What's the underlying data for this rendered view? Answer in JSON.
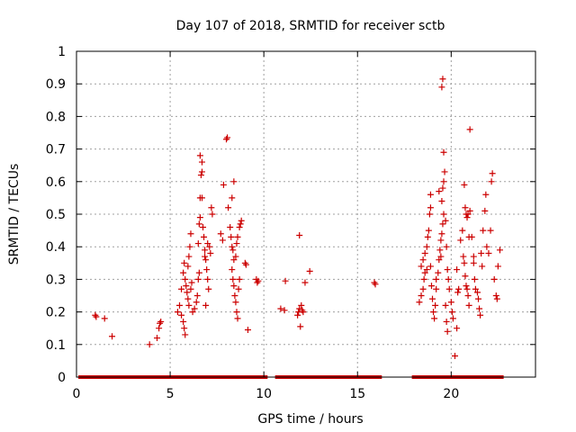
{
  "chart_data": {
    "type": "scatter",
    "title": "Day 107 of 2018, SRMTID for receiver sctb",
    "xlabel": "GPS time / hours",
    "ylabel": "SRMTID / TECUs",
    "xlim": [
      0,
      24.5
    ],
    "ylim": [
      0,
      1
    ],
    "xticks": [
      0,
      5,
      10,
      15,
      20
    ],
    "yticks": [
      0,
      0.1,
      0.2,
      0.3,
      0.4,
      0.5,
      0.6,
      0.7,
      0.8,
      0.9,
      1
    ],
    "xtick_labels": [
      "0",
      "5",
      "10",
      "15",
      "20"
    ],
    "ytick_labels": [
      "0",
      "0.1",
      "0.2",
      "0.3",
      "0.4",
      "0.5",
      "0.6",
      "0.7",
      "0.8",
      "0.9",
      "1"
    ],
    "grid": true,
    "marker": "+",
    "color": "#cc0000",
    "zero_bands": [
      [
        0.1,
        10.2
      ],
      [
        10.6,
        16.3
      ],
      [
        17.9,
        22.8
      ]
    ],
    "series": [
      {
        "name": "SRMTID",
        "points": [
          [
            1.0,
            0.19
          ],
          [
            1.05,
            0.185
          ],
          [
            1.5,
            0.18
          ],
          [
            1.9,
            0.125
          ],
          [
            3.9,
            0.1
          ],
          [
            4.3,
            0.12
          ],
          [
            4.4,
            0.15
          ],
          [
            4.45,
            0.165
          ],
          [
            4.5,
            0.17
          ],
          [
            5.4,
            0.2
          ],
          [
            5.5,
            0.22
          ],
          [
            5.6,
            0.27
          ],
          [
            5.7,
            0.32
          ],
          [
            5.75,
            0.35
          ],
          [
            5.8,
            0.3
          ],
          [
            5.85,
            0.28
          ],
          [
            5.9,
            0.26
          ],
          [
            5.95,
            0.24
          ],
          [
            6.0,
            0.22
          ],
          [
            5.7,
            0.17
          ],
          [
            5.75,
            0.15
          ],
          [
            5.8,
            0.13
          ],
          [
            5.6,
            0.19
          ],
          [
            5.95,
            0.34
          ],
          [
            6.0,
            0.37
          ],
          [
            6.05,
            0.4
          ],
          [
            6.1,
            0.44
          ],
          [
            6.15,
            0.29
          ],
          [
            6.1,
            0.27
          ],
          [
            6.2,
            0.2
          ],
          [
            6.3,
            0.21
          ],
          [
            6.4,
            0.23
          ],
          [
            6.45,
            0.25
          ],
          [
            6.5,
            0.3
          ],
          [
            6.55,
            0.32
          ],
          [
            6.5,
            0.41
          ],
          [
            6.55,
            0.47
          ],
          [
            6.6,
            0.49
          ],
          [
            6.6,
            0.55
          ],
          [
            6.7,
            0.55
          ],
          [
            6.65,
            0.62
          ],
          [
            6.7,
            0.63
          ],
          [
            6.7,
            0.66
          ],
          [
            6.6,
            0.68
          ],
          [
            6.75,
            0.46
          ],
          [
            6.8,
            0.43
          ],
          [
            6.85,
            0.39
          ],
          [
            6.9,
            0.36
          ],
          [
            6.95,
            0.33
          ],
          [
            7.0,
            0.3
          ],
          [
            7.05,
            0.27
          ],
          [
            6.9,
            0.22
          ],
          [
            7.0,
            0.41
          ],
          [
            7.1,
            0.4
          ],
          [
            7.15,
            0.38
          ],
          [
            7.2,
            0.52
          ],
          [
            7.25,
            0.5
          ],
          [
            6.85,
            0.37
          ],
          [
            7.7,
            0.44
          ],
          [
            7.8,
            0.42
          ],
          [
            7.85,
            0.59
          ],
          [
            8.0,
            0.73
          ],
          [
            8.05,
            0.735
          ],
          [
            8.1,
            0.52
          ],
          [
            8.2,
            0.46
          ],
          [
            8.25,
            0.43
          ],
          [
            8.3,
            0.4
          ],
          [
            8.35,
            0.39
          ],
          [
            8.4,
            0.36
          ],
          [
            8.3,
            0.33
          ],
          [
            8.35,
            0.3
          ],
          [
            8.4,
            0.28
          ],
          [
            8.45,
            0.25
          ],
          [
            8.5,
            0.23
          ],
          [
            8.55,
            0.2
          ],
          [
            8.6,
            0.18
          ],
          [
            8.5,
            0.37
          ],
          [
            8.55,
            0.41
          ],
          [
            8.6,
            0.43
          ],
          [
            8.7,
            0.46
          ],
          [
            8.75,
            0.47
          ],
          [
            8.8,
            0.48
          ],
          [
            8.3,
            0.55
          ],
          [
            8.4,
            0.6
          ],
          [
            8.65,
            0.27
          ],
          [
            8.7,
            0.3
          ],
          [
            9.0,
            0.35
          ],
          [
            9.05,
            0.345
          ],
          [
            9.15,
            0.145
          ],
          [
            9.6,
            0.3
          ],
          [
            9.65,
            0.29
          ],
          [
            9.7,
            0.295
          ],
          [
            10.9,
            0.21
          ],
          [
            11.1,
            0.205
          ],
          [
            11.15,
            0.295
          ],
          [
            11.8,
            0.19
          ],
          [
            11.85,
            0.2
          ],
          [
            11.9,
            0.21
          ],
          [
            12.0,
            0.22
          ],
          [
            12.1,
            0.2
          ],
          [
            11.95,
            0.155
          ],
          [
            12.05,
            0.205
          ],
          [
            11.9,
            0.435
          ],
          [
            12.2,
            0.29
          ],
          [
            12.45,
            0.325
          ],
          [
            15.9,
            0.29
          ],
          [
            15.95,
            0.285
          ],
          [
            18.3,
            0.23
          ],
          [
            18.4,
            0.25
          ],
          [
            18.5,
            0.27
          ],
          [
            18.55,
            0.3
          ],
          [
            18.6,
            0.32
          ],
          [
            18.4,
            0.34
          ],
          [
            18.5,
            0.36
          ],
          [
            18.6,
            0.38
          ],
          [
            18.7,
            0.4
          ],
          [
            18.75,
            0.43
          ],
          [
            18.8,
            0.45
          ],
          [
            18.85,
            0.5
          ],
          [
            18.9,
            0.52
          ],
          [
            18.9,
            0.56
          ],
          [
            18.7,
            0.33
          ],
          [
            18.95,
            0.28
          ],
          [
            19.0,
            0.24
          ],
          [
            19.05,
            0.2
          ],
          [
            19.1,
            0.18
          ],
          [
            19.15,
            0.22
          ],
          [
            19.2,
            0.3
          ],
          [
            19.3,
            0.32
          ],
          [
            19.35,
            0.36
          ],
          [
            19.4,
            0.39
          ],
          [
            19.45,
            0.42
          ],
          [
            19.5,
            0.44
          ],
          [
            19.55,
            0.47
          ],
          [
            19.6,
            0.5
          ],
          [
            19.5,
            0.54
          ],
          [
            19.55,
            0.58
          ],
          [
            19.6,
            0.6
          ],
          [
            19.65,
            0.63
          ],
          [
            19.6,
            0.69
          ],
          [
            19.5,
            0.89
          ],
          [
            19.55,
            0.915
          ],
          [
            19.7,
            0.48
          ],
          [
            19.75,
            0.4
          ],
          [
            19.8,
            0.33
          ],
          [
            19.85,
            0.3
          ],
          [
            19.9,
            0.27
          ],
          [
            19.7,
            0.22
          ],
          [
            19.75,
            0.17
          ],
          [
            19.8,
            0.14
          ],
          [
            20.0,
            0.23
          ],
          [
            20.05,
            0.2
          ],
          [
            20.1,
            0.18
          ],
          [
            20.2,
            0.065
          ],
          [
            20.3,
            0.15
          ],
          [
            20.3,
            0.33
          ],
          [
            20.35,
            0.26
          ],
          [
            20.5,
            0.42
          ],
          [
            20.6,
            0.45
          ],
          [
            20.65,
            0.37
          ],
          [
            20.7,
            0.35
          ],
          [
            20.75,
            0.31
          ],
          [
            20.8,
            0.28
          ],
          [
            20.85,
            0.27
          ],
          [
            20.9,
            0.25
          ],
          [
            20.95,
            0.22
          ],
          [
            21.0,
            0.76
          ],
          [
            20.7,
            0.59
          ],
          [
            20.75,
            0.52
          ],
          [
            20.8,
            0.5
          ],
          [
            20.85,
            0.49
          ],
          [
            20.9,
            0.5
          ],
          [
            21.0,
            0.51
          ],
          [
            21.1,
            0.43
          ],
          [
            21.2,
            0.35
          ],
          [
            21.25,
            0.3
          ],
          [
            21.3,
            0.27
          ],
          [
            21.4,
            0.26
          ],
          [
            21.45,
            0.24
          ],
          [
            21.5,
            0.21
          ],
          [
            21.55,
            0.19
          ],
          [
            21.6,
            0.38
          ],
          [
            21.65,
            0.34
          ],
          [
            21.7,
            0.45
          ],
          [
            21.8,
            0.51
          ],
          [
            21.85,
            0.56
          ],
          [
            21.9,
            0.4
          ],
          [
            22.0,
            0.38
          ],
          [
            22.1,
            0.45
          ],
          [
            22.15,
            0.6
          ],
          [
            22.2,
            0.625
          ],
          [
            22.3,
            0.3
          ],
          [
            22.4,
            0.25
          ],
          [
            22.45,
            0.24
          ],
          [
            22.5,
            0.34
          ],
          [
            22.6,
            0.39
          ],
          [
            20.95,
            0.43
          ],
          [
            21.2,
            0.37
          ],
          [
            20.4,
            0.27
          ],
          [
            19.2,
            0.27
          ],
          [
            18.9,
            0.34
          ],
          [
            19.35,
            0.57
          ],
          [
            19.45,
            0.37
          ]
        ]
      }
    ]
  }
}
